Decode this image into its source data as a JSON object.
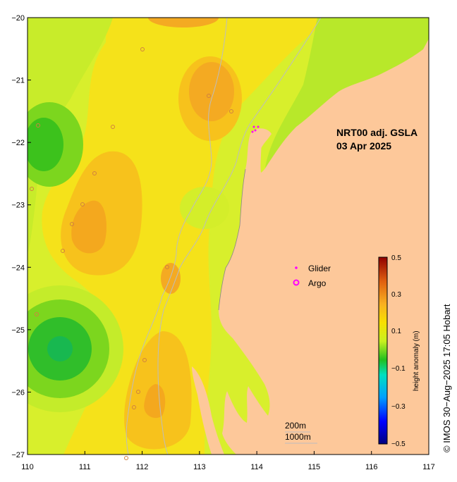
{
  "map": {
    "title_line1": "NRT00 adj. GSLA",
    "title_line2": "03 Apr 2025",
    "x_ticks": [
      "110",
      "111",
      "112",
      "113",
      "114",
      "115",
      "116",
      "117"
    ],
    "y_ticks": [
      "−20",
      "−21",
      "−22",
      "−23",
      "−24",
      "−25",
      "−26",
      "−27"
    ],
    "lon_range": [
      110,
      117
    ],
    "lat_range": [
      -20,
      -27
    ],
    "land_color": "#fdc89a",
    "sea_base_color": "#d8ef2c",
    "legend": {
      "glider_label": "Glider",
      "argo_label": "Argo",
      "glider_color": "#ff00ff",
      "argo_color": "#ff00ff"
    },
    "scale": {
      "depth_200": "200m",
      "depth_1000": "1000m"
    },
    "colorbar": {
      "label": "height anomaly (m)",
      "ticks": [
        "0.5",
        "0.3",
        "0.1",
        "−0.1",
        "−0.3",
        "−0.5"
      ],
      "min": -0.5,
      "max": 0.5
    },
    "credit": "© IMOS 30−Aug−2025 17:05 Hobart"
  }
}
